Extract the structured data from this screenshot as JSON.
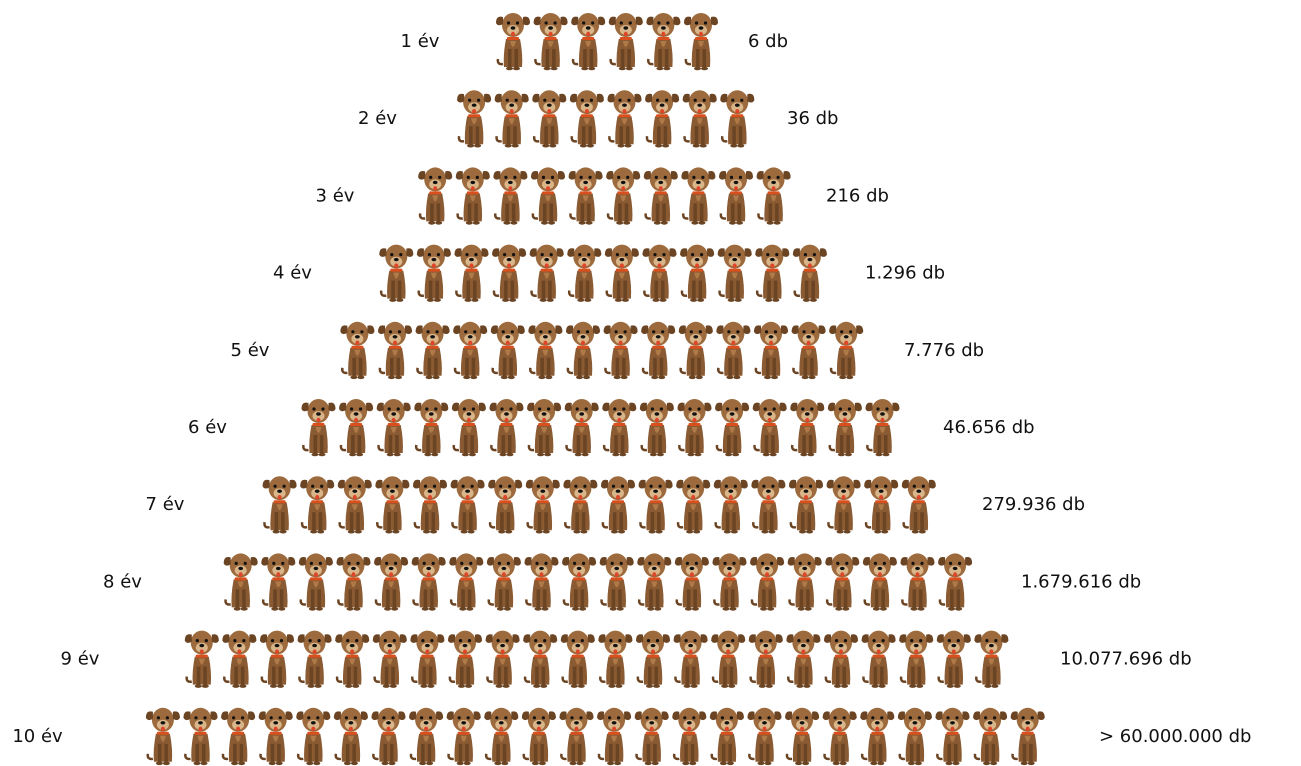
{
  "rows": [
    {
      "year": "1 év",
      "count": "6 db"
    },
    {
      "year": "2 év",
      "count": "36 db"
    },
    {
      "year": "3 év",
      "count": "216 db"
    },
    {
      "year": "4 év",
      "count": "1.296 db"
    },
    {
      "year": "5 év",
      "count": "7.776 db"
    },
    {
      "year": "6 év",
      "count": "46.656 db"
    },
    {
      "year": "7 év",
      "count": "279.936 db"
    },
    {
      "year": "8 év",
      "count": "1.679.616 db"
    },
    {
      "year": "9 év",
      "count": "10.077.696 db"
    },
    {
      "year": "10 év",
      "count": "> 60.000.000 db"
    }
  ]
}
